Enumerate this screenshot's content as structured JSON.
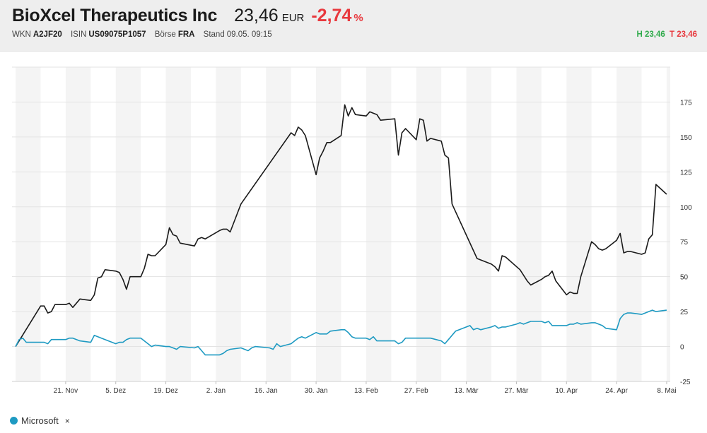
{
  "header": {
    "company": "BioXcel Therapeutics Inc",
    "price": "23,46",
    "currency": "EUR",
    "change": "-2,74",
    "change_unit": "%",
    "wkn_label": "WKN",
    "wkn": "A2JF20",
    "isin_label": "ISIN",
    "isin": "US09075P1057",
    "exchange_label": "Börse",
    "exchange": "FRA",
    "stand_label": "Stand",
    "stand": "09.05. 09:15",
    "high_label": "H",
    "high": "23,46",
    "low_label": "T",
    "low": "23,46"
  },
  "legend": {
    "label": "Microsoft",
    "remove_symbol": "×",
    "color": "#1e9ac2"
  },
  "colors": {
    "main_series": "#1a1a1a",
    "compare_series": "#1e9ac2",
    "negative": "#e8383d",
    "positive": "#2eaa4a"
  },
  "chart_data": {
    "type": "line",
    "ylim": [
      -25,
      200
    ],
    "yticks": [
      -25,
      0,
      25,
      50,
      75,
      100,
      125,
      150,
      175
    ],
    "x_range": [
      "2022-11-06",
      "2023-05-09"
    ],
    "xticks": [
      {
        "date": "2022-11-21",
        "label": "21. Nov"
      },
      {
        "date": "2022-12-05",
        "label": "5. Dez"
      },
      {
        "date": "2022-12-19",
        "label": "19. Dez"
      },
      {
        "date": "2023-01-02",
        "label": "2. Jan"
      },
      {
        "date": "2023-01-16",
        "label": "16. Jan"
      },
      {
        "date": "2023-01-30",
        "label": "30. Jan"
      },
      {
        "date": "2023-02-13",
        "label": "13. Feb"
      },
      {
        "date": "2023-02-27",
        "label": "27. Feb"
      },
      {
        "date": "2023-03-13",
        "label": "13. Mär"
      },
      {
        "date": "2023-03-27",
        "label": "27. Mär"
      },
      {
        "date": "2023-04-10",
        "label": "10. Apr"
      },
      {
        "date": "2023-04-24",
        "label": "24. Apr"
      },
      {
        "date": "2023-05-08",
        "label": "8. Mai"
      }
    ],
    "series": [
      {
        "points": [
          [
            "2022-11-07",
            0
          ],
          [
            "2022-11-14",
            29
          ],
          [
            "2022-11-15",
            29
          ],
          [
            "2022-11-16",
            24
          ],
          [
            "2022-11-17",
            25
          ],
          [
            "2022-11-18",
            30
          ],
          [
            "2022-11-21",
            30
          ],
          [
            "2022-11-22",
            31
          ],
          [
            "2022-11-23",
            28
          ],
          [
            "2022-11-25",
            34
          ],
          [
            "2022-11-28",
            33
          ],
          [
            "2022-11-29",
            37
          ],
          [
            "2022-11-30",
            49
          ],
          [
            "2022-12-01",
            50
          ],
          [
            "2022-12-02",
            55
          ],
          [
            "2022-12-05",
            54
          ],
          [
            "2022-12-06",
            53
          ],
          [
            "2022-12-07",
            48
          ],
          [
            "2022-12-08",
            41
          ],
          [
            "2022-12-09",
            50
          ],
          [
            "2022-12-12",
            50
          ],
          [
            "2022-12-13",
            56
          ],
          [
            "2022-12-14",
            66
          ],
          [
            "2022-12-15",
            65
          ],
          [
            "2022-12-16",
            65
          ],
          [
            "2022-12-19",
            73
          ],
          [
            "2022-12-20",
            85
          ],
          [
            "2022-12-21",
            80
          ],
          [
            "2022-12-22",
            79
          ],
          [
            "2022-12-23",
            74
          ],
          [
            "2022-12-27",
            72
          ],
          [
            "2022-12-28",
            77
          ],
          [
            "2022-12-29",
            78
          ],
          [
            "2022-12-30",
            77
          ],
          [
            "2023-01-03",
            83
          ],
          [
            "2023-01-04",
            84
          ],
          [
            "2023-01-05",
            84
          ],
          [
            "2023-01-06",
            82
          ],
          [
            "2023-01-09",
            102
          ],
          [
            "2023-01-23",
            153
          ],
          [
            "2023-01-24",
            151
          ],
          [
            "2023-01-25",
            157
          ],
          [
            "2023-01-26",
            155
          ],
          [
            "2023-01-27",
            151
          ],
          [
            "2023-01-30",
            123
          ],
          [
            "2023-01-31",
            135
          ],
          [
            "2023-02-01",
            140
          ],
          [
            "2023-02-02",
            146
          ],
          [
            "2023-02-03",
            146
          ],
          [
            "2023-02-06",
            151
          ],
          [
            "2023-02-07",
            173
          ],
          [
            "2023-02-08",
            165
          ],
          [
            "2023-02-09",
            171
          ],
          [
            "2023-02-10",
            166
          ],
          [
            "2023-02-13",
            165
          ],
          [
            "2023-02-14",
            168
          ],
          [
            "2023-02-15",
            167
          ],
          [
            "2023-02-16",
            166
          ],
          [
            "2023-02-17",
            162
          ],
          [
            "2023-02-21",
            163
          ],
          [
            "2023-02-22",
            137
          ],
          [
            "2023-02-23",
            153
          ],
          [
            "2023-02-24",
            156
          ],
          [
            "2023-02-27",
            148
          ],
          [
            "2023-02-28",
            163
          ],
          [
            "2023-03-01",
            162
          ],
          [
            "2023-03-02",
            147
          ],
          [
            "2023-03-03",
            149
          ],
          [
            "2023-03-06",
            147
          ],
          [
            "2023-03-07",
            137
          ],
          [
            "2023-03-08",
            135
          ],
          [
            "2023-03-09",
            102
          ],
          [
            "2023-03-16",
            63
          ],
          [
            "2023-03-20",
            59
          ],
          [
            "2023-03-21",
            57
          ],
          [
            "2023-03-22",
            54
          ],
          [
            "2023-03-23",
            65
          ],
          [
            "2023-03-24",
            64
          ],
          [
            "2023-03-28",
            55
          ],
          [
            "2023-03-30",
            47
          ],
          [
            "2023-03-31",
            44
          ],
          [
            "2023-04-03",
            48
          ],
          [
            "2023-04-04",
            50
          ],
          [
            "2023-04-05",
            51
          ],
          [
            "2023-04-06",
            54
          ],
          [
            "2023-04-07",
            47
          ],
          [
            "2023-04-10",
            37
          ],
          [
            "2023-04-11",
            39
          ],
          [
            "2023-04-12",
            38
          ],
          [
            "2023-04-13",
            38
          ],
          [
            "2023-04-14",
            50
          ],
          [
            "2023-04-17",
            75
          ],
          [
            "2023-04-18",
            73
          ],
          [
            "2023-04-19",
            70
          ],
          [
            "2023-04-20",
            69
          ],
          [
            "2023-04-21",
            70
          ],
          [
            "2023-04-24",
            76
          ],
          [
            "2023-04-25",
            81
          ],
          [
            "2023-04-26",
            67
          ],
          [
            "2023-04-27",
            68
          ],
          [
            "2023-04-28",
            68
          ],
          [
            "2023-05-01",
            66
          ],
          [
            "2023-05-02",
            67
          ],
          [
            "2023-05-03",
            77
          ],
          [
            "2023-05-04",
            80
          ],
          [
            "2023-05-05",
            116
          ],
          [
            "2023-05-08",
            109
          ]
        ]
      },
      {
        "name": "Microsoft",
        "points": [
          [
            "2022-11-07",
            0
          ],
          [
            "2022-11-08",
            5
          ],
          [
            "2022-11-09",
            6
          ],
          [
            "2022-11-10",
            3
          ],
          [
            "2022-11-11",
            3
          ],
          [
            "2022-11-14",
            3
          ],
          [
            "2022-11-15",
            3
          ],
          [
            "2022-11-16",
            2
          ],
          [
            "2022-11-17",
            5
          ],
          [
            "2022-11-18",
            5
          ],
          [
            "2022-11-21",
            5
          ],
          [
            "2022-11-22",
            6
          ],
          [
            "2022-11-23",
            6
          ],
          [
            "2022-11-25",
            4
          ],
          [
            "2022-11-28",
            3
          ],
          [
            "2022-11-29",
            8
          ],
          [
            "2022-11-30",
            7
          ],
          [
            "2022-12-01",
            6
          ],
          [
            "2022-12-02",
            5
          ],
          [
            "2022-12-05",
            2
          ],
          [
            "2022-12-06",
            3
          ],
          [
            "2022-12-07",
            3
          ],
          [
            "2022-12-08",
            5
          ],
          [
            "2022-12-09",
            6
          ],
          [
            "2022-12-12",
            6
          ],
          [
            "2022-12-13",
            4
          ],
          [
            "2022-12-14",
            2
          ],
          [
            "2022-12-15",
            0
          ],
          [
            "2022-12-16",
            1
          ],
          [
            "2022-12-19",
            0
          ],
          [
            "2022-12-20",
            0
          ],
          [
            "2022-12-21",
            -1
          ],
          [
            "2022-12-22",
            -2
          ],
          [
            "2022-12-23",
            0
          ],
          [
            "2022-12-27",
            -1
          ],
          [
            "2022-12-28",
            0
          ],
          [
            "2022-12-29",
            -3
          ],
          [
            "2022-12-30",
            -6
          ],
          [
            "2023-01-03",
            -6
          ],
          [
            "2023-01-04",
            -5
          ],
          [
            "2023-01-05",
            -3
          ],
          [
            "2023-01-06",
            -2
          ],
          [
            "2023-01-09",
            -1
          ],
          [
            "2023-01-10",
            -2
          ],
          [
            "2023-01-11",
            -3
          ],
          [
            "2023-01-12",
            -1
          ],
          [
            "2023-01-13",
            0
          ],
          [
            "2023-01-17",
            -1
          ],
          [
            "2023-01-18",
            -2
          ],
          [
            "2023-01-19",
            2
          ],
          [
            "2023-01-20",
            0
          ],
          [
            "2023-01-23",
            2
          ],
          [
            "2023-01-24",
            4
          ],
          [
            "2023-01-25",
            6
          ],
          [
            "2023-01-26",
            7
          ],
          [
            "2023-01-27",
            6
          ],
          [
            "2023-01-30",
            10
          ],
          [
            "2023-01-31",
            9
          ],
          [
            "2023-02-01",
            9
          ],
          [
            "2023-02-02",
            9
          ],
          [
            "2023-02-03",
            11
          ],
          [
            "2023-02-06",
            12
          ],
          [
            "2023-02-07",
            12
          ],
          [
            "2023-02-08",
            10
          ],
          [
            "2023-02-09",
            7
          ],
          [
            "2023-02-10",
            6
          ],
          [
            "2023-02-13",
            6
          ],
          [
            "2023-02-14",
            5
          ],
          [
            "2023-02-15",
            7
          ],
          [
            "2023-02-16",
            4
          ],
          [
            "2023-02-17",
            4
          ],
          [
            "2023-02-21",
            4
          ],
          [
            "2023-02-22",
            2
          ],
          [
            "2023-02-23",
            3
          ],
          [
            "2023-02-24",
            6
          ],
          [
            "2023-02-27",
            6
          ],
          [
            "2023-02-28",
            6
          ],
          [
            "2023-03-01",
            6
          ],
          [
            "2023-03-02",
            6
          ],
          [
            "2023-03-03",
            6
          ],
          [
            "2023-03-06",
            4
          ],
          [
            "2023-03-07",
            2
          ],
          [
            "2023-03-08",
            5
          ],
          [
            "2023-03-09",
            8
          ],
          [
            "2023-03-10",
            11
          ],
          [
            "2023-03-13",
            14
          ],
          [
            "2023-03-14",
            15
          ],
          [
            "2023-03-15",
            12
          ],
          [
            "2023-03-16",
            13
          ],
          [
            "2023-03-17",
            12
          ],
          [
            "2023-03-20",
            14
          ],
          [
            "2023-03-21",
            15
          ],
          [
            "2023-03-22",
            13
          ],
          [
            "2023-03-23",
            14
          ],
          [
            "2023-03-24",
            14
          ],
          [
            "2023-03-27",
            16
          ],
          [
            "2023-03-28",
            17
          ],
          [
            "2023-03-29",
            16
          ],
          [
            "2023-03-30",
            17
          ],
          [
            "2023-03-31",
            18
          ],
          [
            "2023-04-03",
            18
          ],
          [
            "2023-04-04",
            17
          ],
          [
            "2023-04-05",
            18
          ],
          [
            "2023-04-06",
            15
          ],
          [
            "2023-04-10",
            15
          ],
          [
            "2023-04-11",
            16
          ],
          [
            "2023-04-12",
            16
          ],
          [
            "2023-04-13",
            17
          ],
          [
            "2023-04-14",
            16
          ],
          [
            "2023-04-17",
            17
          ],
          [
            "2023-04-18",
            17
          ],
          [
            "2023-04-19",
            16
          ],
          [
            "2023-04-20",
            15
          ],
          [
            "2023-04-21",
            13
          ],
          [
            "2023-04-24",
            12
          ],
          [
            "2023-04-25",
            20
          ],
          [
            "2023-04-26",
            23
          ],
          [
            "2023-04-27",
            24
          ],
          [
            "2023-04-28",
            24
          ],
          [
            "2023-05-01",
            23
          ],
          [
            "2023-05-02",
            24
          ],
          [
            "2023-05-03",
            25
          ],
          [
            "2023-05-04",
            26
          ],
          [
            "2023-05-05",
            25
          ],
          [
            "2023-05-08",
            26
          ]
        ]
      }
    ]
  }
}
